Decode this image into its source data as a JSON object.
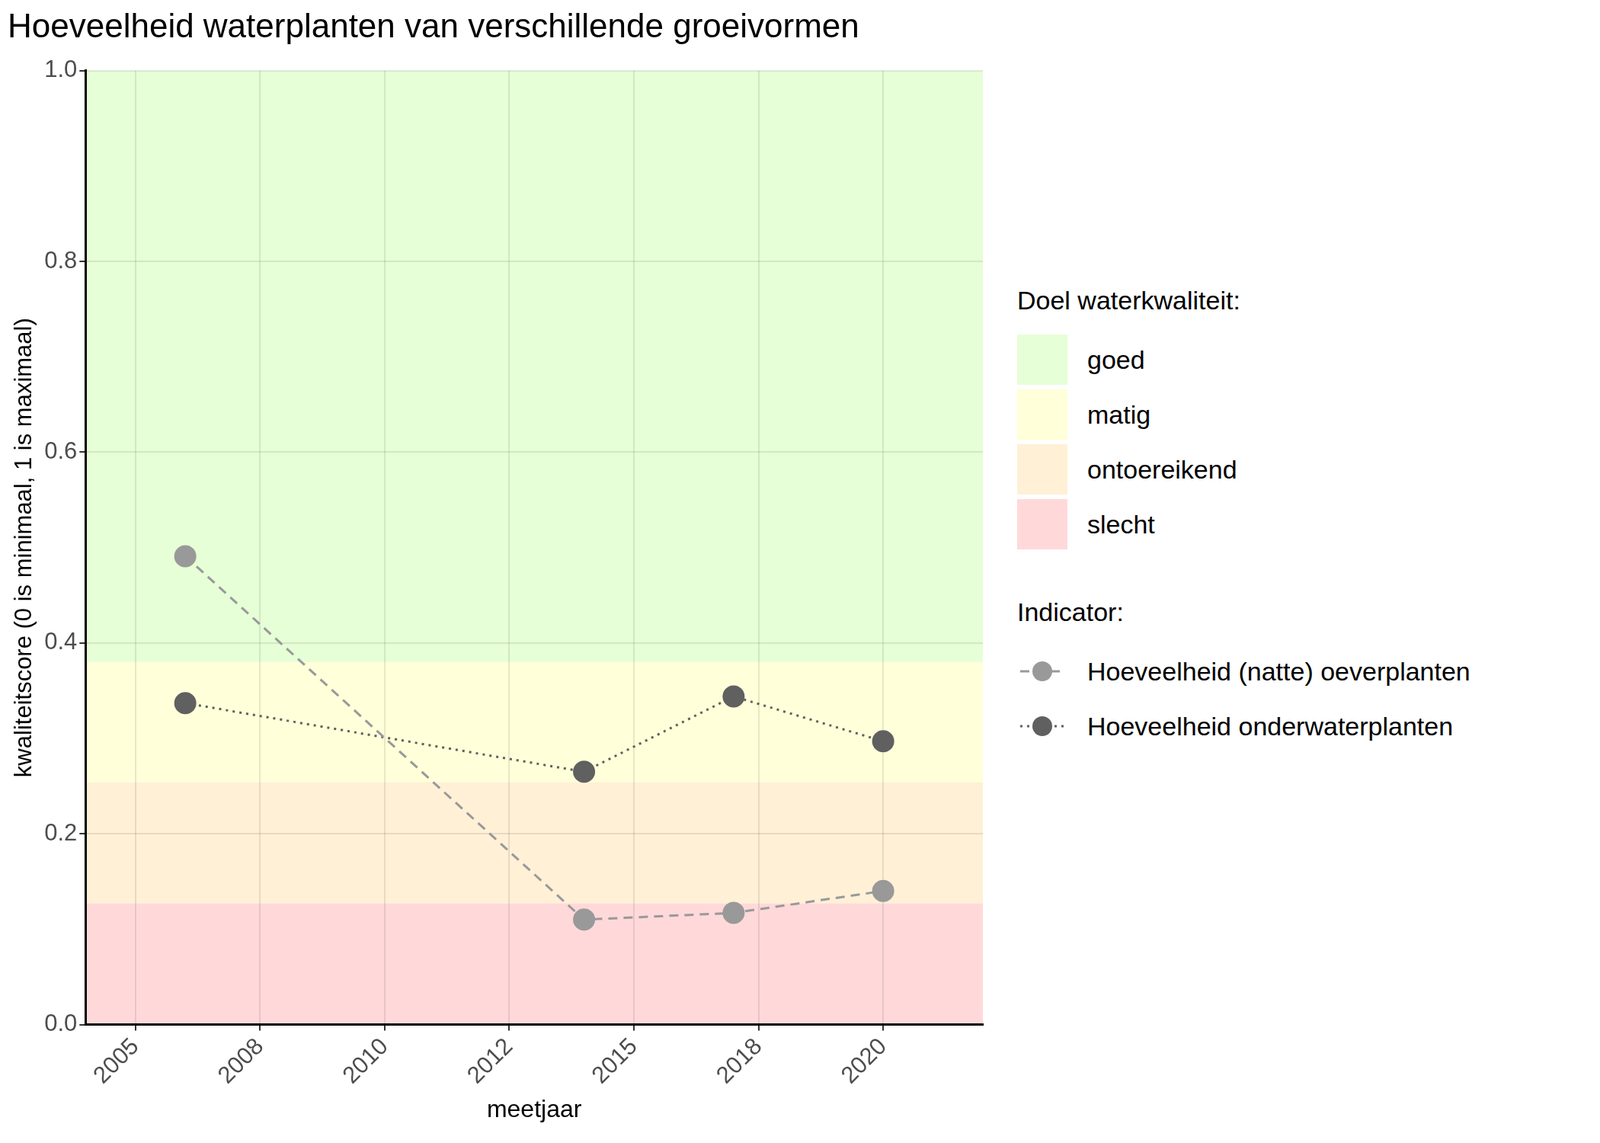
{
  "chart_data": {
    "type": "line",
    "title": "Hoeveelheid waterplanten van verschillende groeivormen",
    "x_label": "meetjaar",
    "y_label": "kwaliteitscore (0 is minimaal, 1 is maximaal)",
    "x": [
      2006,
      2014,
      2017,
      2020
    ],
    "series": [
      {
        "name": "Hoeveelheid (natte) oeverplanten",
        "color": "#999999",
        "marker": "circle",
        "line_style": "dashed",
        "values": [
          0.491,
          0.11,
          0.117,
          0.14
        ]
      },
      {
        "name": "Hoeveelheid onderwaterplanten",
        "color": "#606060",
        "marker": "circle",
        "line_style": "dotted",
        "values": [
          0.337,
          0.265,
          0.344,
          0.297
        ]
      }
    ],
    "bands_title": "Doel waterkwaliteit:",
    "series_title": "Indicator:",
    "bands": [
      {
        "name": "goed",
        "color": "#e6ffd6",
        "from": 0.38,
        "to": 1.0
      },
      {
        "name": "matig",
        "color": "#ffffd9",
        "from": 0.254,
        "to": 0.38
      },
      {
        "name": "ontoereikend",
        "color": "#fff0d6",
        "from": 0.127,
        "to": 0.254
      },
      {
        "name": "slecht",
        "color": "#ffd9d9",
        "from": 0.0,
        "to": 0.127
      }
    ],
    "xlim": [
      2004,
      2022
    ],
    "xticks": [
      2005,
      {
        "value": 2007.5,
        "label": "2008"
      },
      2010,
      {
        "value": 2012.5,
        "label": "2012"
      },
      2015,
      {
        "value": 2017.5,
        "label": "2018"
      },
      2020
    ],
    "ylim": [
      0,
      1
    ],
    "yticks": [
      {
        "value": 0,
        "label": "0.0"
      },
      0.2,
      0.4,
      0.6,
      0.8,
      {
        "value": 1,
        "label": "1.0"
      }
    ],
    "grid": true,
    "legend": "right"
  }
}
